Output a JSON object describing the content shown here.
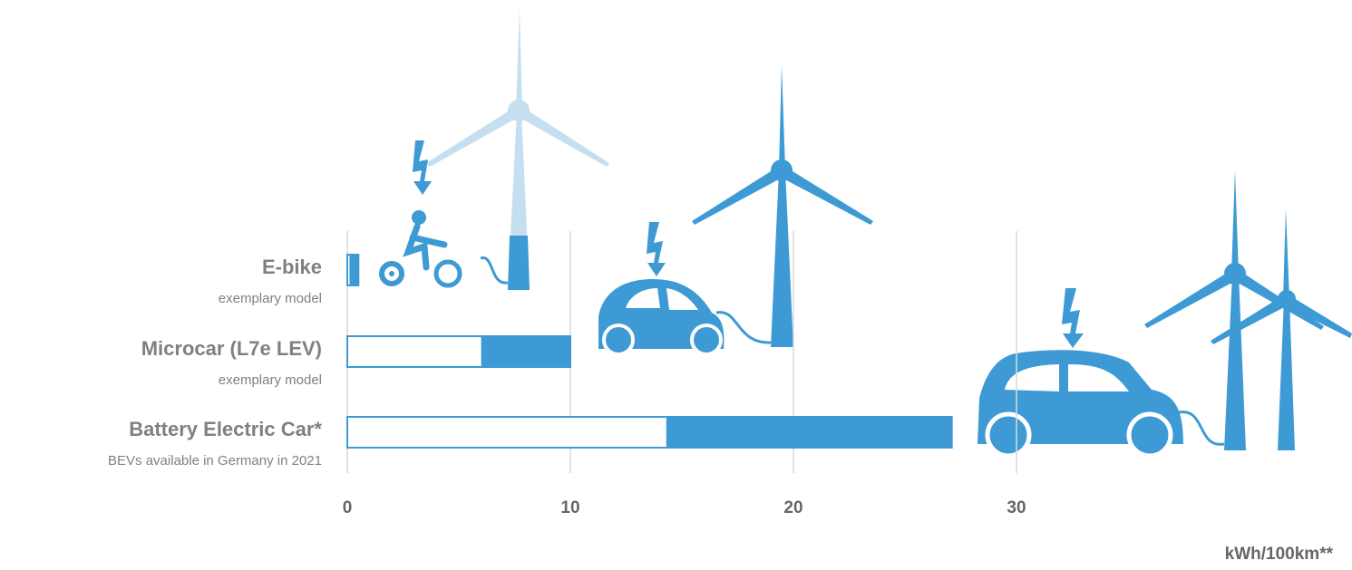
{
  "chart_data": {
    "type": "range-bar",
    "categories": [
      "E-bike",
      "Microcar (L7e LEV)",
      "Battery Electric Car*"
    ],
    "category_notes": [
      "exemplary model",
      "exemplary model",
      "BEVs available in Germany in 2021"
    ],
    "low": [
      0.1,
      6,
      14.3
    ],
    "high": [
      0.5,
      10,
      27.1
    ],
    "color": "#3d9ad5",
    "xlim": [
      0,
      45
    ],
    "xticks": [
      0,
      10,
      20,
      30
    ],
    "grid": true,
    "x_label": "kWh/100km**"
  }
}
